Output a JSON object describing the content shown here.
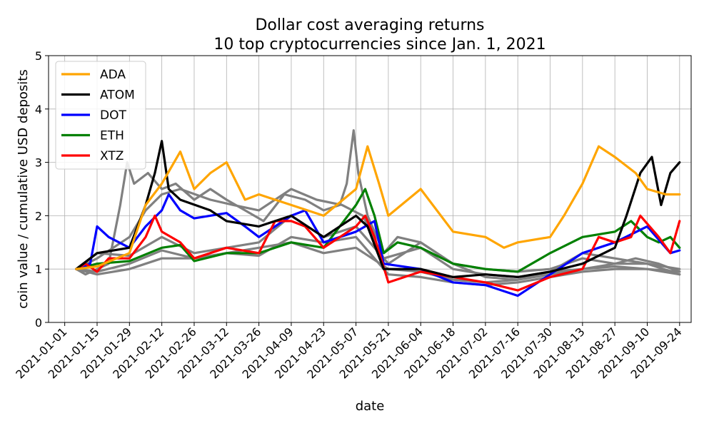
{
  "chart_data": {
    "type": "line",
    "title": "Dollar cost averaging returns",
    "subtitle": "10 top cryptocurrencies since Jan. 1, 2021",
    "xlabel": "date",
    "ylabel": "coin value / cumulative USD deposits",
    "x_ticks": [
      "2021-01-01",
      "2021-01-15",
      "2021-01-29",
      "2021-02-12",
      "2021-02-26",
      "2021-03-12",
      "2021-03-26",
      "2021-04-09",
      "2021-04-23",
      "2021-05-07",
      "2021-05-21",
      "2021-06-04",
      "2021-06-18",
      "2021-07-02",
      "2021-07-16",
      "2021-07-30",
      "2021-08-13",
      "2021-08-27",
      "2021-09-10",
      "2021-09-24"
    ],
    "xlim": [
      "2020-12-25",
      "2021-09-29"
    ],
    "ylim": [
      0,
      5
    ],
    "y_ticks": [
      0,
      1,
      2,
      3,
      4,
      5
    ],
    "grid": true,
    "legend_placement": "top-left",
    "series": [
      {
        "name": "",
        "color": "#808080",
        "points": [
          [
            "2021-01-06",
            1.0
          ],
          [
            "2021-01-10",
            0.9
          ],
          [
            "2021-01-20",
            1.1
          ],
          [
            "2021-01-25",
            2.2
          ],
          [
            "2021-01-28",
            3.0
          ],
          [
            "2021-01-31",
            2.6
          ],
          [
            "2021-02-06",
            2.8
          ],
          [
            "2021-02-12",
            2.5
          ],
          [
            "2021-02-18",
            2.6
          ],
          [
            "2021-02-26",
            2.3
          ],
          [
            "2021-03-05",
            2.5
          ],
          [
            "2021-03-12",
            2.3
          ],
          [
            "2021-03-20",
            2.1
          ],
          [
            "2021-03-28",
            1.9
          ],
          [
            "2021-04-06",
            2.4
          ],
          [
            "2021-04-15",
            2.3
          ],
          [
            "2021-04-23",
            2.1
          ],
          [
            "2021-04-30",
            2.2
          ],
          [
            "2021-05-03",
            2.6
          ],
          [
            "2021-05-06",
            3.6
          ],
          [
            "2021-05-08",
            2.8
          ],
          [
            "2021-05-12",
            2.0
          ],
          [
            "2021-05-19",
            1.3
          ],
          [
            "2021-05-25",
            1.6
          ],
          [
            "2021-06-04",
            1.5
          ],
          [
            "2021-06-18",
            1.1
          ],
          [
            "2021-07-02",
            1.0
          ],
          [
            "2021-07-16",
            0.95
          ],
          [
            "2021-07-30",
            1.0
          ],
          [
            "2021-08-13",
            1.2
          ],
          [
            "2021-08-27",
            1.1
          ],
          [
            "2021-09-05",
            1.2
          ],
          [
            "2021-09-15",
            1.1
          ],
          [
            "2021-09-24",
            0.95
          ]
        ]
      },
      {
        "name": "",
        "color": "#808080",
        "points": [
          [
            "2021-01-06",
            1.0
          ],
          [
            "2021-01-15",
            1.2
          ],
          [
            "2021-01-29",
            1.6
          ],
          [
            "2021-02-05",
            2.1
          ],
          [
            "2021-02-12",
            2.4
          ],
          [
            "2021-02-20",
            2.5
          ],
          [
            "2021-03-05",
            2.3
          ],
          [
            "2021-03-15",
            2.2
          ],
          [
            "2021-03-26",
            2.1
          ],
          [
            "2021-04-09",
            2.5
          ],
          [
            "2021-04-20",
            2.3
          ],
          [
            "2021-05-01",
            2.2
          ],
          [
            "2021-05-10",
            2.0
          ],
          [
            "2021-05-19",
            1.2
          ],
          [
            "2021-06-04",
            1.4
          ],
          [
            "2021-06-18",
            1.0
          ],
          [
            "2021-07-02",
            0.9
          ],
          [
            "2021-07-16",
            0.85
          ],
          [
            "2021-07-30",
            0.95
          ],
          [
            "2021-08-13",
            1.0
          ],
          [
            "2021-08-27",
            1.05
          ],
          [
            "2021-09-10",
            1.0
          ],
          [
            "2021-09-24",
            0.9
          ]
        ]
      },
      {
        "name": "",
        "color": "#808080",
        "points": [
          [
            "2021-01-06",
            1.0
          ],
          [
            "2021-01-15",
            0.9
          ],
          [
            "2021-01-29",
            1.0
          ],
          [
            "2021-02-12",
            1.2
          ],
          [
            "2021-02-26",
            1.2
          ],
          [
            "2021-03-12",
            1.3
          ],
          [
            "2021-03-26",
            1.4
          ],
          [
            "2021-04-09",
            1.5
          ],
          [
            "2021-04-23",
            1.3
          ],
          [
            "2021-05-07",
            1.4
          ],
          [
            "2021-05-21",
            1.0
          ],
          [
            "2021-06-04",
            0.95
          ],
          [
            "2021-06-18",
            0.8
          ],
          [
            "2021-07-02",
            0.75
          ],
          [
            "2021-07-16",
            0.8
          ],
          [
            "2021-07-30",
            0.9
          ],
          [
            "2021-08-13",
            1.0
          ],
          [
            "2021-08-27",
            1.1
          ],
          [
            "2021-09-10",
            1.1
          ],
          [
            "2021-09-24",
            1.0
          ]
        ]
      },
      {
        "name": "",
        "color": "#808080",
        "points": [
          [
            "2021-01-06",
            1.0
          ],
          [
            "2021-01-15",
            0.95
          ],
          [
            "2021-01-29",
            1.1
          ],
          [
            "2021-02-12",
            1.35
          ],
          [
            "2021-02-26",
            1.2
          ],
          [
            "2021-03-12",
            1.3
          ],
          [
            "2021-03-26",
            1.25
          ],
          [
            "2021-04-09",
            1.6
          ],
          [
            "2021-04-23",
            1.5
          ],
          [
            "2021-05-07",
            1.6
          ],
          [
            "2021-05-21",
            0.9
          ],
          [
            "2021-06-04",
            0.85
          ],
          [
            "2021-06-18",
            0.75
          ],
          [
            "2021-07-02",
            0.7
          ],
          [
            "2021-07-16",
            0.75
          ],
          [
            "2021-07-30",
            0.85
          ],
          [
            "2021-08-13",
            0.95
          ],
          [
            "2021-08-27",
            1.0
          ],
          [
            "2021-09-10",
            1.0
          ],
          [
            "2021-09-24",
            0.95
          ]
        ]
      },
      {
        "name": "",
        "color": "#808080",
        "points": [
          [
            "2021-01-06",
            1.0
          ],
          [
            "2021-01-15",
            1.3
          ],
          [
            "2021-01-29",
            1.25
          ],
          [
            "2021-02-12",
            1.6
          ],
          [
            "2021-02-26",
            1.3
          ],
          [
            "2021-03-12",
            1.4
          ],
          [
            "2021-03-26",
            1.5
          ],
          [
            "2021-04-09",
            2.0
          ],
          [
            "2021-04-23",
            1.6
          ],
          [
            "2021-05-07",
            1.8
          ],
          [
            "2021-05-21",
            1.1
          ],
          [
            "2021-06-04",
            1.5
          ],
          [
            "2021-06-18",
            1.1
          ],
          [
            "2021-07-02",
            0.85
          ],
          [
            "2021-07-16",
            0.8
          ],
          [
            "2021-07-30",
            0.95
          ],
          [
            "2021-08-13",
            1.3
          ],
          [
            "2021-08-27",
            1.2
          ],
          [
            "2021-09-10",
            1.1
          ],
          [
            "2021-09-24",
            0.9
          ]
        ]
      },
      {
        "name": "ETH",
        "color": "#008000",
        "points": [
          [
            "2021-01-06",
            1.0
          ],
          [
            "2021-01-15",
            1.1
          ],
          [
            "2021-01-29",
            1.15
          ],
          [
            "2021-02-12",
            1.4
          ],
          [
            "2021-02-20",
            1.45
          ],
          [
            "2021-02-26",
            1.15
          ],
          [
            "2021-03-12",
            1.3
          ],
          [
            "2021-03-26",
            1.3
          ],
          [
            "2021-04-09",
            1.5
          ],
          [
            "2021-04-23",
            1.4
          ],
          [
            "2021-05-07",
            2.2
          ],
          [
            "2021-05-11",
            2.5
          ],
          [
            "2021-05-15",
            2.0
          ],
          [
            "2021-05-19",
            1.3
          ],
          [
            "2021-05-25",
            1.5
          ],
          [
            "2021-06-04",
            1.4
          ],
          [
            "2021-06-18",
            1.1
          ],
          [
            "2021-07-02",
            1.0
          ],
          [
            "2021-07-16",
            0.95
          ],
          [
            "2021-07-30",
            1.3
          ],
          [
            "2021-08-13",
            1.6
          ],
          [
            "2021-08-27",
            1.7
          ],
          [
            "2021-09-03",
            1.9
          ],
          [
            "2021-09-10",
            1.6
          ],
          [
            "2021-09-15",
            1.5
          ],
          [
            "2021-09-20",
            1.6
          ],
          [
            "2021-09-24",
            1.4
          ]
        ]
      },
      {
        "name": "DOT",
        "color": "#0000ff",
        "points": [
          [
            "2021-01-06",
            1.0
          ],
          [
            "2021-01-12",
            1.1
          ],
          [
            "2021-01-15",
            1.8
          ],
          [
            "2021-01-20",
            1.6
          ],
          [
            "2021-01-29",
            1.4
          ],
          [
            "2021-02-05",
            1.8
          ],
          [
            "2021-02-12",
            2.1
          ],
          [
            "2021-02-15",
            2.4
          ],
          [
            "2021-02-20",
            2.1
          ],
          [
            "2021-02-26",
            1.95
          ],
          [
            "2021-03-12",
            2.05
          ],
          [
            "2021-03-20",
            1.8
          ],
          [
            "2021-03-26",
            1.6
          ],
          [
            "2021-04-09",
            2.0
          ],
          [
            "2021-04-15",
            2.1
          ],
          [
            "2021-04-23",
            1.5
          ],
          [
            "2021-05-07",
            1.7
          ],
          [
            "2021-05-15",
            1.9
          ],
          [
            "2021-05-19",
            1.1
          ],
          [
            "2021-06-04",
            1.0
          ],
          [
            "2021-06-18",
            0.75
          ],
          [
            "2021-07-02",
            0.7
          ],
          [
            "2021-07-16",
            0.5
          ],
          [
            "2021-07-30",
            0.9
          ],
          [
            "2021-08-13",
            1.3
          ],
          [
            "2021-08-27",
            1.5
          ],
          [
            "2021-09-10",
            1.8
          ],
          [
            "2021-09-20",
            1.3
          ],
          [
            "2021-09-24",
            1.35
          ]
        ]
      },
      {
        "name": "XTZ",
        "color": "#ff0000",
        "points": [
          [
            "2021-01-06",
            1.0
          ],
          [
            "2021-01-10",
            1.1
          ],
          [
            "2021-01-15",
            0.95
          ],
          [
            "2021-01-20",
            1.2
          ],
          [
            "2021-01-29",
            1.2
          ],
          [
            "2021-02-05",
            1.6
          ],
          [
            "2021-02-09",
            2.0
          ],
          [
            "2021-02-12",
            1.7
          ],
          [
            "2021-02-20",
            1.5
          ],
          [
            "2021-02-26",
            1.2
          ],
          [
            "2021-03-12",
            1.4
          ],
          [
            "2021-03-26",
            1.3
          ],
          [
            "2021-04-02",
            1.9
          ],
          [
            "2021-04-09",
            1.9
          ],
          [
            "2021-04-15",
            1.8
          ],
          [
            "2021-04-23",
            1.4
          ],
          [
            "2021-05-07",
            1.8
          ],
          [
            "2021-05-11",
            2.0
          ],
          [
            "2021-05-15",
            1.6
          ],
          [
            "2021-05-21",
            0.75
          ],
          [
            "2021-06-04",
            0.95
          ],
          [
            "2021-06-18",
            0.85
          ],
          [
            "2021-07-02",
            0.75
          ],
          [
            "2021-07-16",
            0.6
          ],
          [
            "2021-07-30",
            0.85
          ],
          [
            "2021-08-13",
            1.0
          ],
          [
            "2021-08-20",
            1.6
          ],
          [
            "2021-08-27",
            1.5
          ],
          [
            "2021-09-03",
            1.6
          ],
          [
            "2021-09-07",
            2.0
          ],
          [
            "2021-09-15",
            1.6
          ],
          [
            "2021-09-20",
            1.3
          ],
          [
            "2021-09-24",
            1.9
          ]
        ]
      },
      {
        "name": "ATOM",
        "color": "#000000",
        "points": [
          [
            "2021-01-06",
            1.0
          ],
          [
            "2021-01-15",
            1.3
          ],
          [
            "2021-01-29",
            1.4
          ],
          [
            "2021-02-05",
            2.2
          ],
          [
            "2021-02-09",
            2.8
          ],
          [
            "2021-02-12",
            3.4
          ],
          [
            "2021-02-15",
            2.5
          ],
          [
            "2021-02-20",
            2.3
          ],
          [
            "2021-03-05",
            2.1
          ],
          [
            "2021-03-12",
            1.9
          ],
          [
            "2021-03-26",
            1.8
          ],
          [
            "2021-04-09",
            2.0
          ],
          [
            "2021-04-23",
            1.6
          ],
          [
            "2021-05-07",
            2.0
          ],
          [
            "2021-05-12",
            1.8
          ],
          [
            "2021-05-19",
            1.0
          ],
          [
            "2021-06-04",
            1.0
          ],
          [
            "2021-06-18",
            0.85
          ],
          [
            "2021-07-02",
            0.9
          ],
          [
            "2021-07-16",
            0.85
          ],
          [
            "2021-07-30",
            0.95
          ],
          [
            "2021-08-13",
            1.1
          ],
          [
            "2021-08-27",
            1.4
          ],
          [
            "2021-09-01",
            2.0
          ],
          [
            "2021-09-07",
            2.8
          ],
          [
            "2021-09-12",
            3.1
          ],
          [
            "2021-09-16",
            2.2
          ],
          [
            "2021-09-20",
            2.8
          ],
          [
            "2021-09-24",
            3.0
          ]
        ]
      },
      {
        "name": "ADA",
        "color": "#ffa500",
        "points": [
          [
            "2021-01-06",
            1.0
          ],
          [
            "2021-01-15",
            1.05
          ],
          [
            "2021-01-29",
            1.3
          ],
          [
            "2021-02-05",
            2.2
          ],
          [
            "2021-02-12",
            2.6
          ],
          [
            "2021-02-20",
            3.2
          ],
          [
            "2021-02-26",
            2.5
          ],
          [
            "2021-03-05",
            2.8
          ],
          [
            "2021-03-12",
            3.0
          ],
          [
            "2021-03-20",
            2.3
          ],
          [
            "2021-03-26",
            2.4
          ],
          [
            "2021-04-09",
            2.2
          ],
          [
            "2021-04-23",
            2.0
          ],
          [
            "2021-05-07",
            2.5
          ],
          [
            "2021-05-12",
            3.3
          ],
          [
            "2021-05-17",
            2.6
          ],
          [
            "2021-05-21",
            2.0
          ],
          [
            "2021-06-04",
            2.5
          ],
          [
            "2021-06-18",
            1.7
          ],
          [
            "2021-07-02",
            1.6
          ],
          [
            "2021-07-10",
            1.4
          ],
          [
            "2021-07-16",
            1.5
          ],
          [
            "2021-07-30",
            1.6
          ],
          [
            "2021-08-05",
            2.0
          ],
          [
            "2021-08-13",
            2.6
          ],
          [
            "2021-08-20",
            3.3
          ],
          [
            "2021-08-27",
            3.1
          ],
          [
            "2021-09-05",
            2.8
          ],
          [
            "2021-09-10",
            2.5
          ],
          [
            "2021-09-18",
            2.4
          ],
          [
            "2021-09-24",
            2.4
          ]
        ]
      }
    ]
  }
}
